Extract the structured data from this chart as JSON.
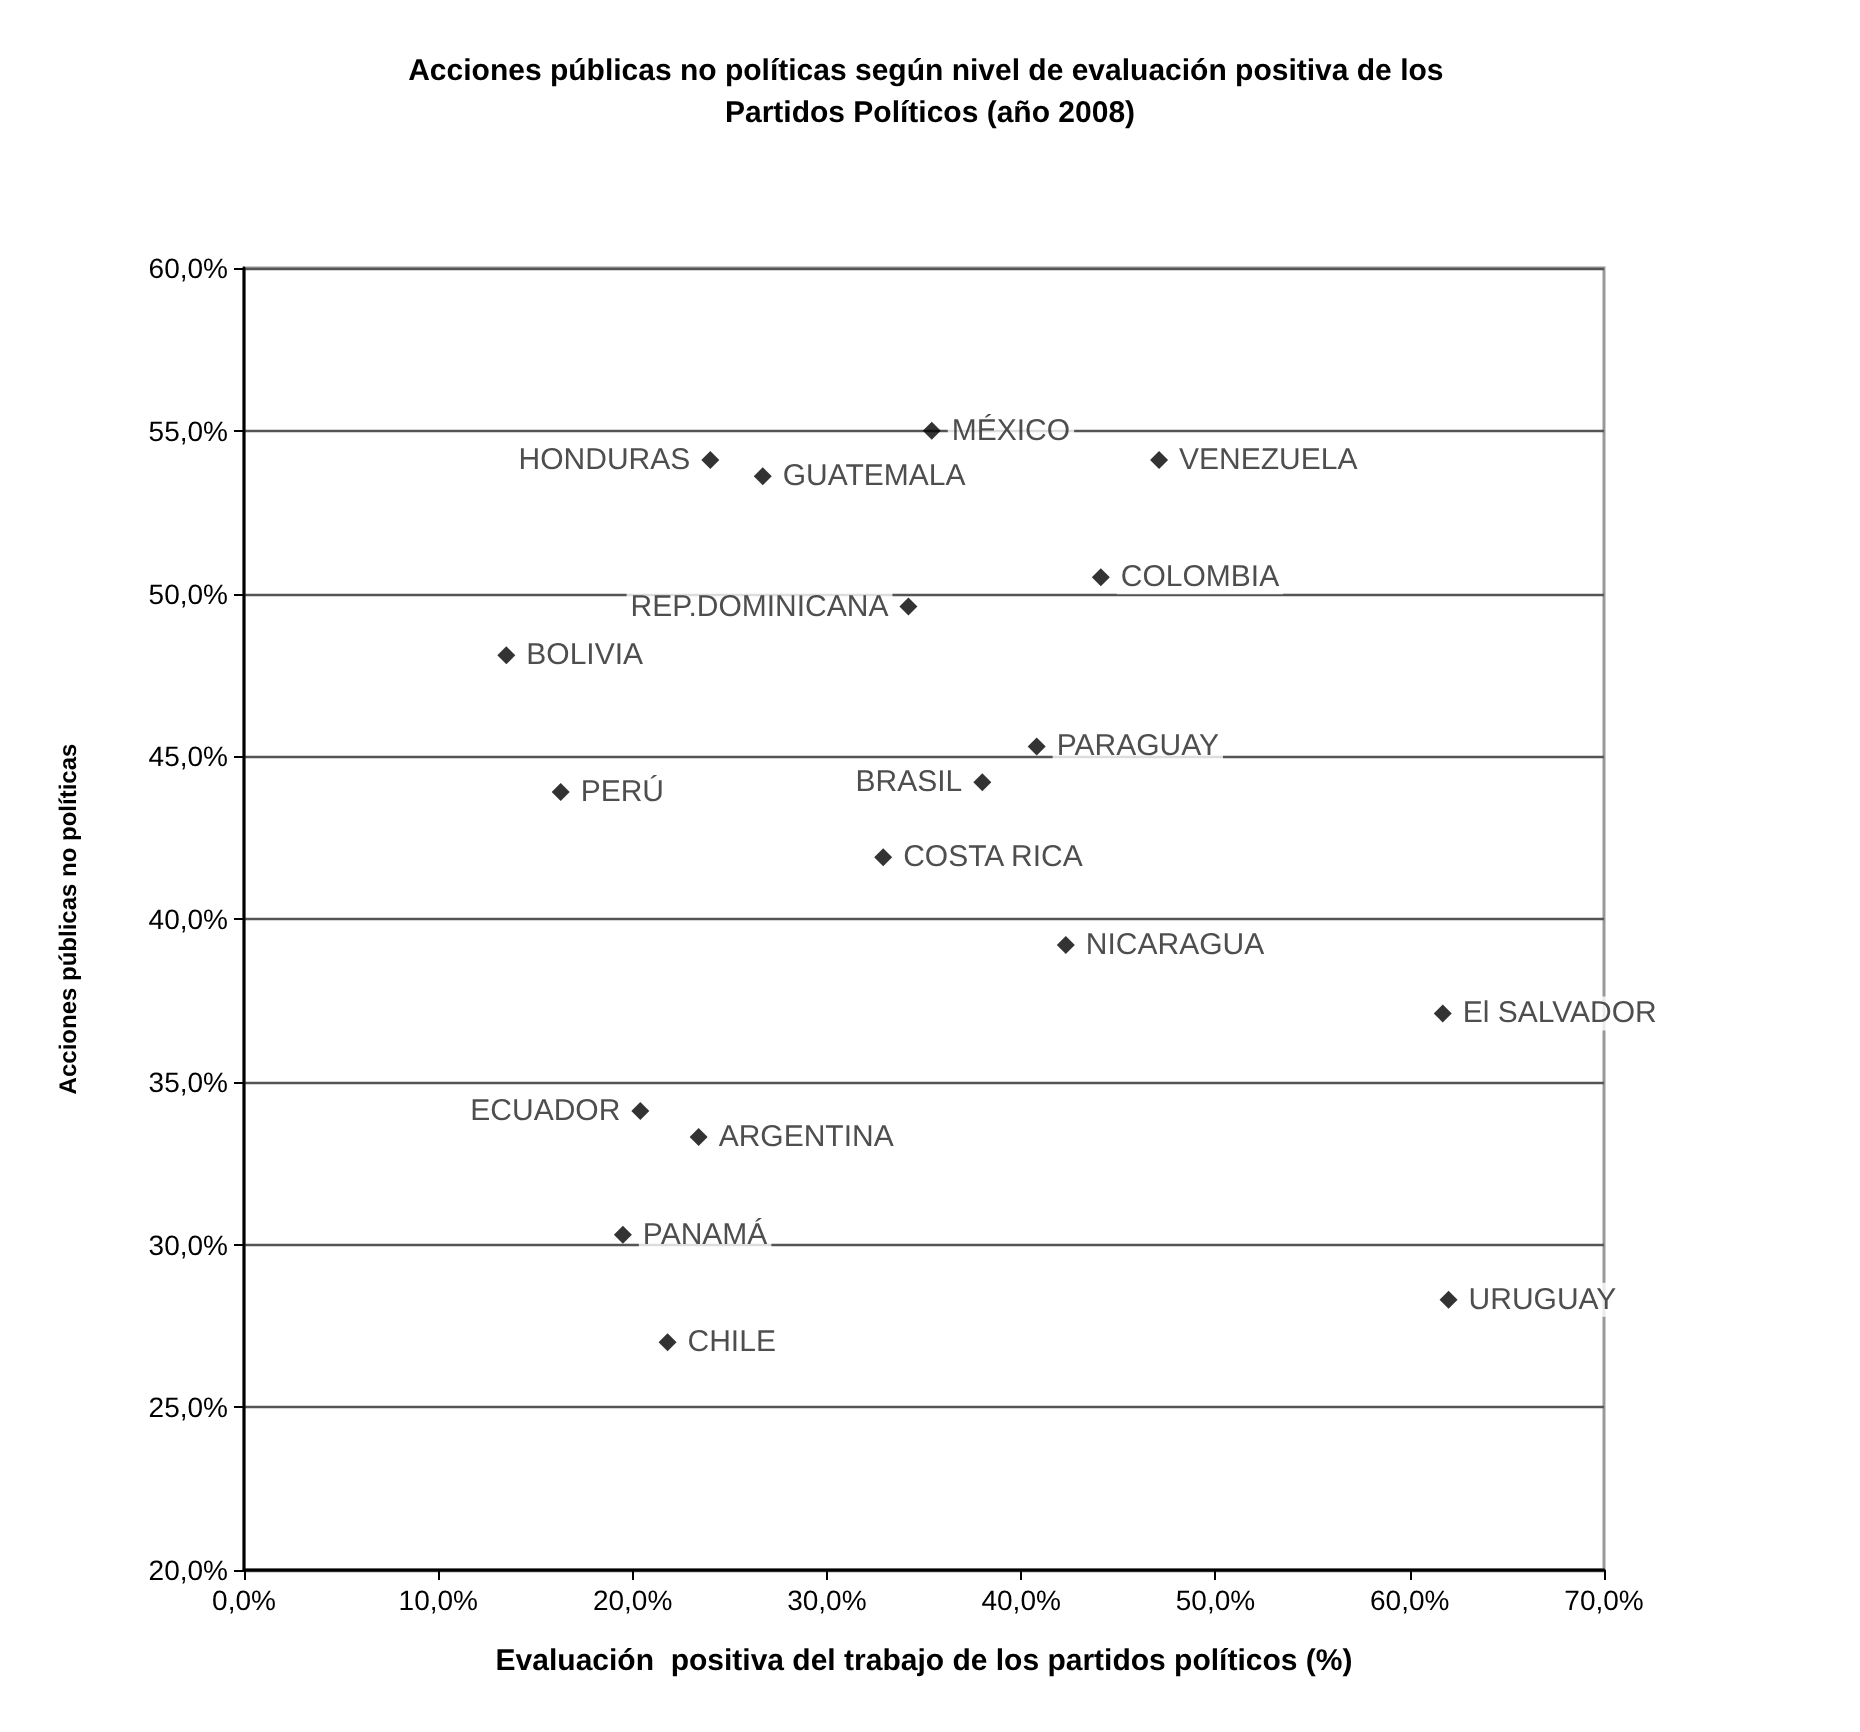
{
  "chart_data": {
    "type": "scatter",
    "title": "Acciones públicas no políticas según nivel de evaluación positiva de los Partidos Políticos (año 2008)",
    "xlabel": "Evaluación  positiva del trabajo de los partidos políticos (%)",
    "ylabel": "Acciones públicas no políticas",
    "series": [
      {
        "color": "#000000",
        "x": [
          35.4,
          24.0,
          26.7,
          34.2,
          13.5,
          16.3,
          38.0,
          32.9,
          47.1,
          44.1,
          40.8,
          42.3,
          61.7,
          62.0,
          20.4,
          23.4,
          19.5,
          21.8
        ],
        "values": [
          55.0,
          54.1,
          53.6,
          49.6,
          48.1,
          43.9,
          44.2,
          41.9,
          54.1,
          50.5,
          45.3,
          39.2,
          37.1,
          28.3,
          34.1,
          33.3,
          30.3,
          27.0
        ]
      }
    ],
    "annotations": [
      {
        "text": "MÉXICO",
        "x": 35.4,
        "y": 55.0
      },
      {
        "text": "HONDURAS",
        "x": 24.0,
        "y": 54.1
      },
      {
        "text": "GUATEMALA",
        "x": 26.7,
        "y": 53.6
      },
      {
        "text": "REP.DOMINICANA",
        "x": 34.2,
        "y": 49.6
      },
      {
        "text": "BOLIVIA",
        "x": 13.5,
        "y": 48.1
      },
      {
        "text": "PERÚ",
        "x": 16.3,
        "y": 43.9
      },
      {
        "text": "BRASIL",
        "x": 38.0,
        "y": 44.2
      },
      {
        "text": "COSTA RICA",
        "x": 32.9,
        "y": 41.9
      },
      {
        "text": "VENEZUELA",
        "x": 47.1,
        "y": 54.1
      },
      {
        "text": "COLOMBIA",
        "x": 44.1,
        "y": 50.5
      },
      {
        "text": "PARAGUAY",
        "x": 40.8,
        "y": 45.3
      },
      {
        "text": "NICARAGUA",
        "x": 42.3,
        "y": 39.2
      },
      {
        "text": "El SALVADOR",
        "x": 61.7,
        "y": 37.1
      },
      {
        "text": "URUGUAY",
        "x": 62.0,
        "y": 28.3
      },
      {
        "text": "ECUADOR",
        "x": 20.4,
        "y": 34.1
      },
      {
        "text": "ARGENTINA",
        "x": 23.4,
        "y": 33.3
      },
      {
        "text": "PANAMÁ",
        "x": 19.5,
        "y": 30.3
      },
      {
        "text": "CHILE",
        "x": 21.8,
        "y": 27.0
      }
    ],
    "xlim": [
      0,
      70
    ],
    "xticks": [
      {
        "value": 0,
        "label": "0,0%"
      },
      {
        "value": 10,
        "label": "10,0%"
      },
      {
        "value": 20,
        "label": "20,0%"
      },
      {
        "value": 30,
        "label": "30,0%"
      },
      {
        "value": 40,
        "label": "40,0%"
      },
      {
        "value": 50,
        "label": "50,0%"
      },
      {
        "value": 60,
        "label": "60,0%"
      },
      {
        "value": 70,
        "label": "70,0%"
      }
    ],
    "ylim": [
      20,
      60
    ],
    "yticks": [
      {
        "value": 20,
        "label": "20,0%"
      },
      {
        "value": 25,
        "label": "25,0%"
      },
      {
        "value": 30,
        "label": "30,0%"
      },
      {
        "value": 35,
        "label": "35,0%"
      },
      {
        "value": 40,
        "label": "40,0%"
      },
      {
        "value": 45,
        "label": "45,0%"
      },
      {
        "value": 50,
        "label": "50,0%"
      },
      {
        "value": 55,
        "label": "55,0%"
      },
      {
        "value": 60,
        "label": "60,0%"
      }
    ],
    "grid": "y",
    "marker": "diamond"
  }
}
